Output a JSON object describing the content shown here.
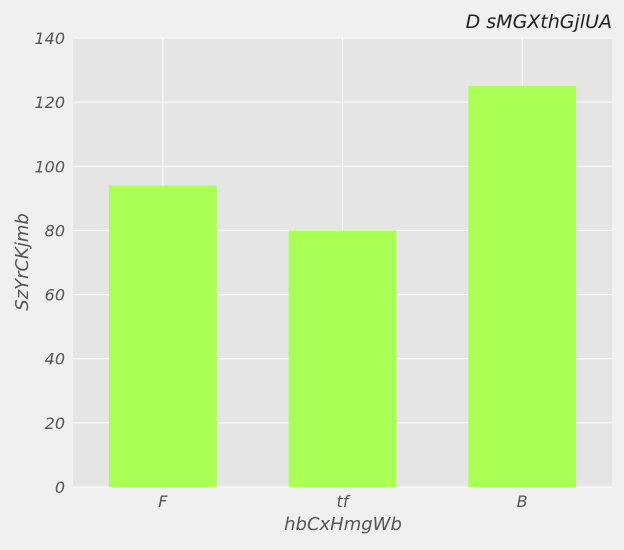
{
  "chart_data": {
    "type": "bar",
    "title": "D sMGXthGjlUA",
    "xlabel": "hbCxHmgWb",
    "ylabel": "SzYrCKjmb",
    "categories": [
      "F",
      "tf",
      "B"
    ],
    "values": [
      94,
      80,
      125
    ],
    "ylim": [
      0,
      140
    ],
    "yticks": [
      0,
      20,
      40,
      60,
      80,
      100,
      120,
      140
    ],
    "grid": true,
    "legend": "none",
    "colors": {
      "bar": "#aaff55",
      "plot_background": "#e5e5e5",
      "figure_background": "#f0f0f0",
      "grid": "#ffffff"
    }
  }
}
